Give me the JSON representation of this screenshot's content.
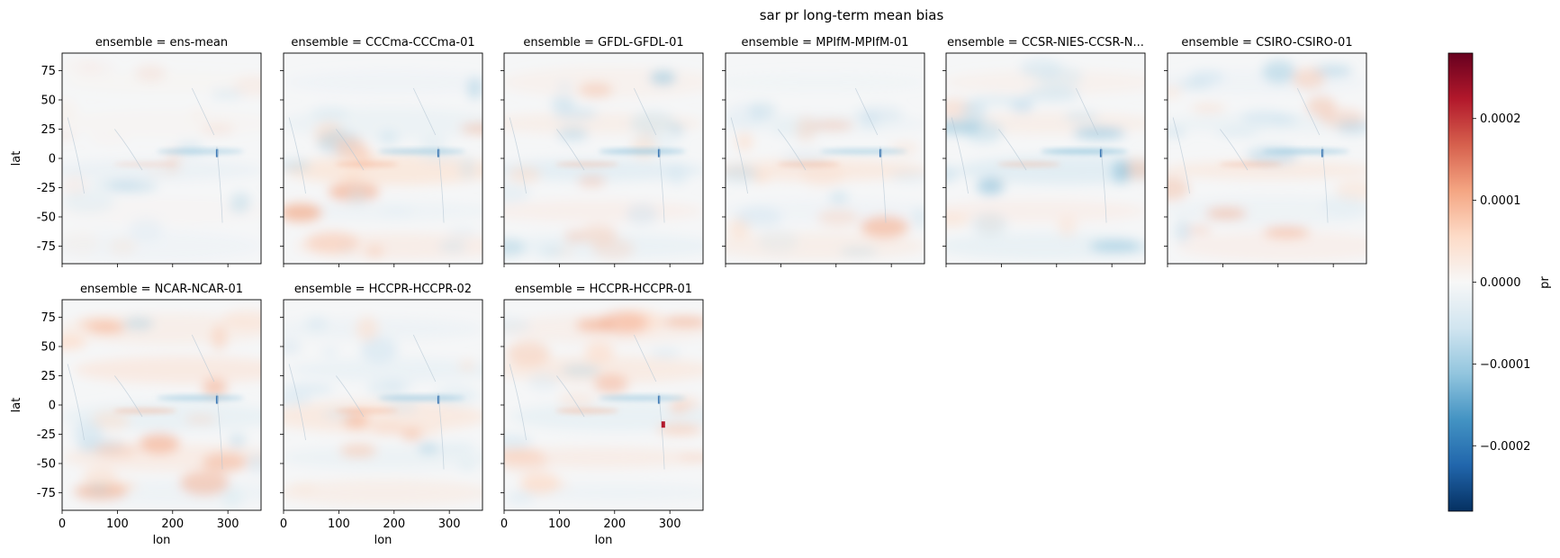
{
  "chart_data": {
    "type": "heatmap",
    "title": "sar pr long-term mean bias",
    "xlabel": "lon",
    "ylabel": "lat",
    "xlim": [
      0,
      360
    ],
    "ylim": [
      -90,
      90
    ],
    "xticks": [
      0,
      100,
      200,
      300
    ],
    "yticks": [
      75,
      50,
      25,
      0,
      -25,
      -50,
      -75
    ],
    "colorbar": {
      "label": "pr",
      "colormap": "RdBu_r",
      "range": [
        -0.00028,
        0.00028
      ],
      "ticks": [
        0.0002,
        0.0001,
        0.0,
        -0.0001,
        -0.0002
      ],
      "tick_labels": [
        "0.0002",
        "0.0001",
        "0.0000",
        "−0.0001",
        "−0.0002"
      ]
    },
    "panels": [
      {
        "title": "ensemble = ens-mean",
        "intensity": 0.2,
        "warm": 0.1,
        "cool": 0.2
      },
      {
        "title": "ensemble = CCCma-CCCma-01",
        "intensity": 0.4,
        "warm": 0.4,
        "cool": 0.25
      },
      {
        "title": "ensemble = GFDL-GFDL-01",
        "intensity": 0.35,
        "warm": 0.3,
        "cool": 0.35
      },
      {
        "title": "ensemble = MPIfM-MPIfM-01",
        "intensity": 0.25,
        "warm": 0.35,
        "cool": 0.2
      },
      {
        "title": "ensemble = CCSR-NIES-CCSR-N...",
        "intensity": 0.4,
        "warm": 0.3,
        "cool": 0.4
      },
      {
        "title": "ensemble = CSIRO-CSIRO-01",
        "intensity": 0.3,
        "warm": 0.3,
        "cool": 0.25
      },
      {
        "title": "ensemble = NCAR-NCAR-01",
        "intensity": 0.35,
        "warm": 0.45,
        "cool": 0.25
      },
      {
        "title": "ensemble = HCCPR-HCCPR-02",
        "intensity": 0.35,
        "warm": 0.35,
        "cool": 0.3
      },
      {
        "title": "ensemble = HCCPR-HCCPR-01",
        "intensity": 0.3,
        "warm": 0.4,
        "cool": 0.25
      }
    ]
  }
}
